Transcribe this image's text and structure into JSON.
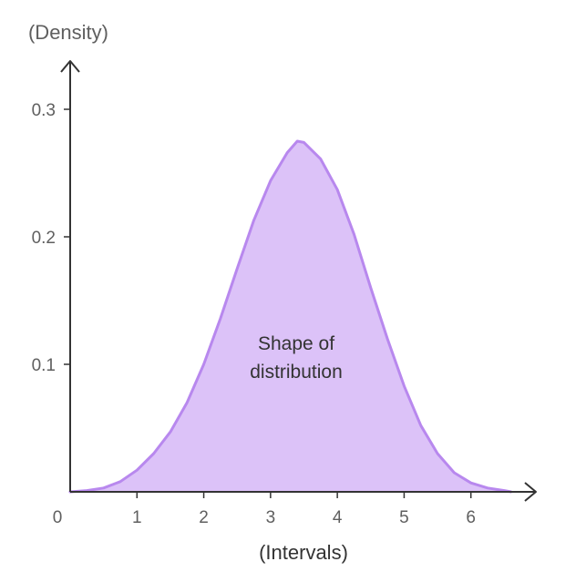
{
  "chart_data": {
    "type": "area",
    "ylabel": "(Density)",
    "xlabel": "(Intervals)",
    "annotation": [
      "Shape of",
      "distribution"
    ],
    "origin_label": "0",
    "xlim": [
      0,
      7
    ],
    "ylim": [
      0,
      0.35
    ],
    "x_ticks": [
      1,
      2,
      3,
      4,
      5,
      6
    ],
    "x_tick_labels": [
      "1",
      "2",
      "3",
      "4",
      "5",
      "6"
    ],
    "y_ticks": [
      0.1,
      0.2,
      0.3
    ],
    "y_tick_labels": [
      "0.1",
      "0.2",
      "0.3"
    ],
    "grid": false,
    "series": [
      {
        "x": [
          0,
          0.25,
          0.5,
          0.75,
          1,
          1.25,
          1.5,
          1.75,
          2,
          2.25,
          2.5,
          2.75,
          3,
          3.25,
          3.4,
          3.5,
          3.75,
          4,
          4.25,
          4.5,
          4.75,
          5,
          5.25,
          5.5,
          5.75,
          6,
          6.25,
          6.5,
          6.6
        ],
        "y": [
          0,
          0.001,
          0.003,
          0.008,
          0.017,
          0.03,
          0.047,
          0.07,
          0.1,
          0.136,
          0.175,
          0.213,
          0.244,
          0.266,
          0.275,
          0.274,
          0.261,
          0.237,
          0.202,
          0.16,
          0.12,
          0.083,
          0.052,
          0.03,
          0.015,
          0.007,
          0.003,
          0.001,
          0
        ]
      }
    ],
    "colors": {
      "fill": "#dcc2f8",
      "stroke": "#b888ee",
      "axis": "#333333"
    }
  }
}
